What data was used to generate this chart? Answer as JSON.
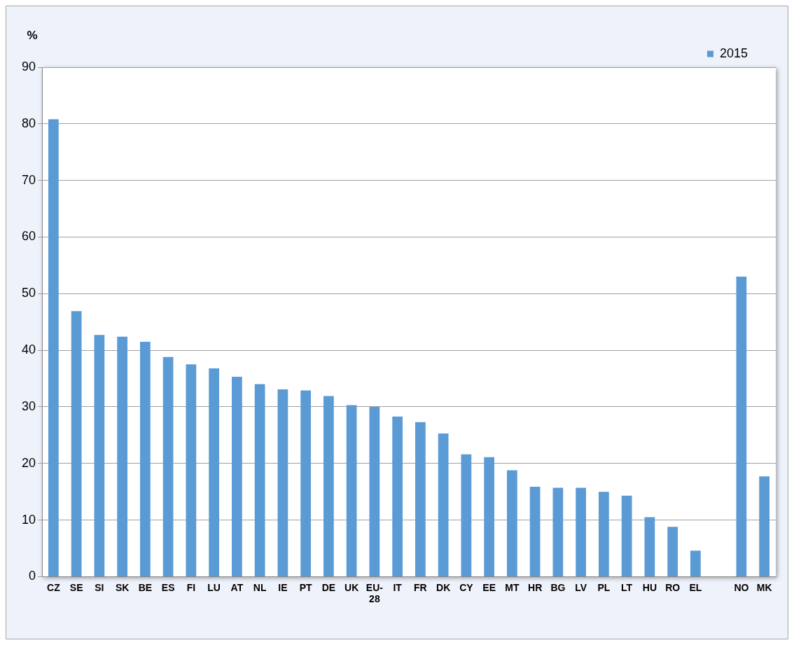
{
  "chart_data": {
    "type": "bar",
    "ylabel": "%",
    "categories": [
      "CZ",
      "SE",
      "SI",
      "SK",
      "BE",
      "ES",
      "FI",
      "LU",
      "AT",
      "NL",
      "IE",
      "PT",
      "DE",
      "UK",
      "EU-28",
      "IT",
      "FR",
      "DK",
      "CY",
      "EE",
      "MT",
      "HR",
      "BG",
      "LV",
      "PL",
      "LT",
      "HU",
      "RO",
      "EL",
      null,
      "NO",
      "MK"
    ],
    "series": [
      {
        "name": "2015",
        "color": "#5b9bd5",
        "values": [
          80.8,
          46.9,
          42.7,
          42.4,
          41.5,
          38.8,
          37.5,
          36.8,
          35.3,
          34.0,
          33.1,
          32.9,
          31.9,
          30.3,
          30.0,
          28.3,
          27.3,
          25.3,
          21.6,
          21.1,
          18.8,
          15.9,
          15.7,
          15.7,
          15.0,
          14.3,
          10.5,
          8.8,
          4.6,
          null,
          53.0,
          17.7
        ]
      }
    ],
    "ylim": [
      0,
      90
    ],
    "yticks": [
      0,
      10,
      20,
      30,
      40,
      50,
      60,
      70,
      80,
      90
    ],
    "grid": "y",
    "legend": "top right"
  }
}
